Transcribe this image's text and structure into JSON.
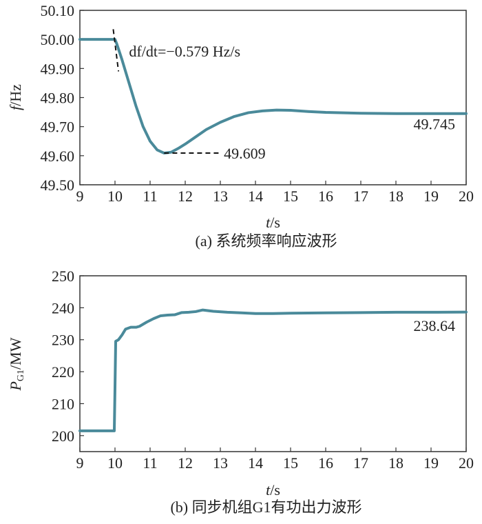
{
  "chart_data": [
    {
      "type": "line",
      "caption": "(a) 系统频率响应波形",
      "xlabel": {
        "var": "t",
        "unit": "/s"
      },
      "ylabel": {
        "var": "f",
        "unit": "/Hz"
      },
      "xlim": [
        9,
        20
      ],
      "ylim": [
        49.5,
        50.1
      ],
      "xticks": [
        9,
        10,
        11,
        12,
        13,
        14,
        15,
        16,
        17,
        18,
        19,
        20
      ],
      "yticks": [
        "49.50",
        "49.60",
        "49.70",
        "49.80",
        "49.90",
        "50.00",
        "50.10"
      ],
      "line_color": "#4a8a9a",
      "series": [
        {
          "x": [
            9,
            10,
            10.05,
            10.2,
            10.4,
            10.6,
            10.8,
            11.0,
            11.2,
            11.4,
            11.6,
            11.8,
            12.0,
            12.3,
            12.6,
            13.0,
            13.4,
            13.8,
            14.2,
            14.6,
            15.0,
            15.5,
            16.0,
            17.0,
            18.0,
            19.0,
            20.0
          ],
          "y": [
            50.0,
            50.0,
            49.985,
            49.93,
            49.85,
            49.77,
            49.7,
            49.65,
            49.62,
            49.609,
            49.612,
            49.625,
            49.64,
            49.665,
            49.69,
            49.715,
            49.735,
            49.748,
            49.754,
            49.757,
            49.756,
            49.752,
            49.749,
            49.746,
            49.745,
            49.745,
            49.745
          ]
        }
      ],
      "annotations": [
        {
          "text": "df/dt=−0.579 Hz/s",
          "x": 10.4,
          "y": 49.96
        },
        {
          "text": "49.609",
          "x": 13.1,
          "y": 49.609
        },
        {
          "text": "49.745",
          "x": 18.5,
          "y": 49.71
        }
      ],
      "guides": [
        {
          "style": "dashed",
          "x": [
            9.95,
            10.1
          ],
          "y": [
            50.035,
            49.89
          ]
        },
        {
          "style": "dashed",
          "x": [
            11.4,
            13.0
          ],
          "y": [
            49.609,
            49.609
          ]
        }
      ]
    },
    {
      "type": "line",
      "caption": "(b) 同步机组G1有功出力波形",
      "xlabel": {
        "var": "t",
        "unit": "/s"
      },
      "ylabel": {
        "var": "P",
        "sub": "G1",
        "unit": "/MW"
      },
      "xlim": [
        9,
        20
      ],
      "ylim": [
        195,
        250
      ],
      "xticks": [
        9,
        10,
        11,
        12,
        13,
        14,
        15,
        16,
        17,
        18,
        19,
        20
      ],
      "yticks": [
        "200",
        "210",
        "220",
        "230",
        "240",
        "250"
      ],
      "line_color": "#4a8a9a",
      "series": [
        {
          "x": [
            9,
            9.98,
            10.0,
            10.02,
            10.1,
            10.2,
            10.3,
            10.45,
            10.6,
            10.7,
            10.9,
            11.1,
            11.3,
            11.5,
            11.7,
            11.9,
            12.1,
            12.3,
            12.5,
            12.8,
            13.2,
            13.6,
            14.0,
            14.5,
            15.0,
            16.0,
            17.0,
            18.0,
            19.0,
            20.0
          ],
          "y": [
            201.5,
            201.5,
            215,
            229.5,
            230.0,
            231.5,
            233.3,
            233.9,
            233.9,
            234.2,
            235.5,
            236.6,
            237.5,
            237.7,
            237.8,
            238.5,
            238.6,
            238.8,
            239.3,
            238.9,
            238.6,
            238.4,
            238.2,
            238.2,
            238.3,
            238.4,
            238.5,
            238.6,
            238.6,
            238.64
          ]
        }
      ],
      "annotations": [
        {
          "text": "238.64",
          "x": 18.5,
          "y": 234.5
        }
      ]
    }
  ]
}
